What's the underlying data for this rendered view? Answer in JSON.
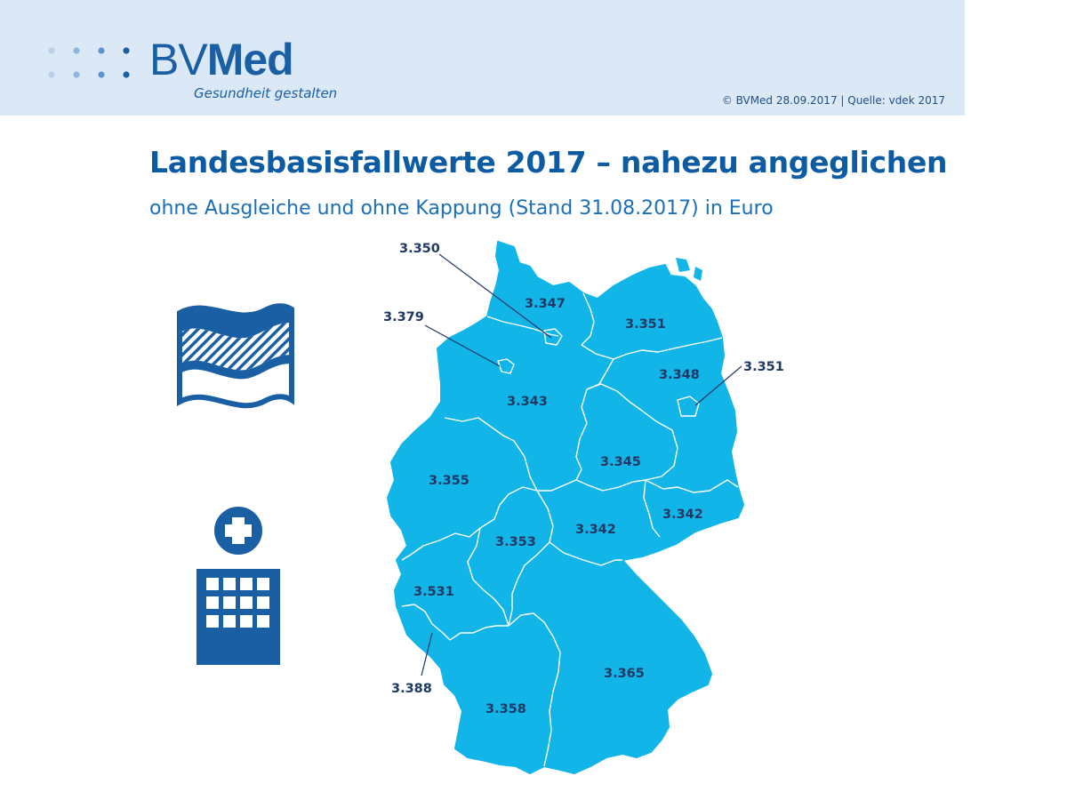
{
  "header": {
    "logo_prefix": "BV",
    "logo_suffix": "Med",
    "logo_tagline": "Gesundheit gestalten",
    "source": "© BVMed 28.09.2017 | Quelle: vdek 2017"
  },
  "title": "Landesbasisfallwerte 2017 – nahezu angeglichen",
  "subtitle": "ohne Ausgleiche und ohne Kappung (Stand 31.08.2017) in Euro",
  "icons": [
    "state-flag-icon",
    "hospital-icon"
  ],
  "colors": {
    "header_bg": "#dbe9f7",
    "brand_blue": "#1a5ea4",
    "map_fill": "#12b5e7",
    "label_color": "#1f3864"
  },
  "map_labels": {
    "schleswig_holstein": "3.347",
    "hamburg": "3.350",
    "mecklenburg_vorpommern": "3.351",
    "bremen": "3.379",
    "niedersachsen": "3.343",
    "brandenburg": "3.348",
    "berlin": "3.351",
    "sachsen_anhalt": "3.345",
    "nordrhein_westfalen": "3.355",
    "sachsen": "3.342",
    "thueringen": "3.342",
    "hessen": "3.353",
    "rheinland_pfalz": "3.531",
    "saarland": "3.388",
    "bayern": "3.365",
    "baden_wuerttemberg": "3.358"
  }
}
